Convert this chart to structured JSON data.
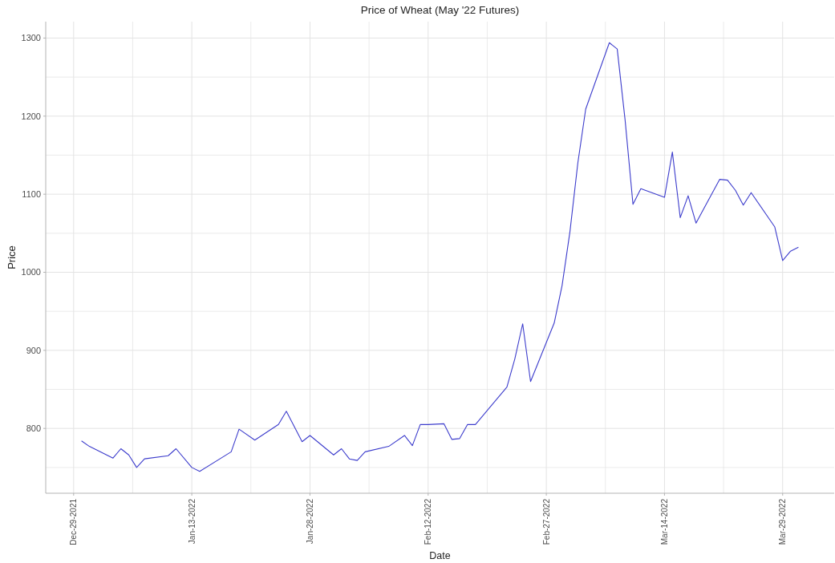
{
  "chart_data": {
    "type": "line",
    "title": "Price of Wheat (May '22 Futures)",
    "xlabel": "Date",
    "ylabel": "Price",
    "x": [
      "2021-12-30",
      "2021-12-31",
      "2022-01-03",
      "2022-01-04",
      "2022-01-05",
      "2022-01-06",
      "2022-01-07",
      "2022-01-10",
      "2022-01-11",
      "2022-01-13",
      "2022-01-14",
      "2022-01-18",
      "2022-01-19",
      "2022-01-21",
      "2022-01-24",
      "2022-01-25",
      "2022-01-27",
      "2022-01-28",
      "2022-01-31",
      "2022-02-01",
      "2022-02-02",
      "2022-02-03",
      "2022-02-04",
      "2022-02-07",
      "2022-02-09",
      "2022-02-10",
      "2022-02-11",
      "2022-02-12",
      "2022-02-14",
      "2022-02-15",
      "2022-02-16",
      "2022-02-17",
      "2022-02-18",
      "2022-02-22",
      "2022-02-23",
      "2022-02-24",
      "2022-02-25",
      "2022-02-28",
      "2022-03-01",
      "2022-03-02",
      "2022-03-03",
      "2022-03-04",
      "2022-03-07",
      "2022-03-08",
      "2022-03-09",
      "2022-03-10",
      "2022-03-11",
      "2022-03-14",
      "2022-03-15",
      "2022-03-16",
      "2022-03-17",
      "2022-03-18",
      "2022-03-21",
      "2022-03-22",
      "2022-03-23",
      "2022-03-24",
      "2022-03-25",
      "2022-03-28",
      "2022-03-29",
      "2022-03-30",
      "2022-03-31"
    ],
    "series": [
      {
        "color": "#3c3ccc",
        "values": [
          784,
          777,
          762,
          774,
          766,
          750,
          761,
          765,
          774,
          750,
          745,
          770,
          799,
          785,
          805,
          822,
          783,
          791,
          766,
          774,
          761,
          759,
          770,
          777,
          791,
          778,
          805,
          805,
          806,
          786,
          787,
          805,
          805,
          853,
          889,
          934,
          860,
          935,
          983,
          1052,
          1140,
          1209,
          1294,
          1286,
          1195,
          1087,
          1107,
          1096,
          1154,
          1070,
          1098,
          1063,
          1119,
          1118,
          1105,
          1086,
          1102,
          1058,
          1015,
          1027,
          1032
        ]
      }
    ],
    "xlim": [
      "2021-12-25T11:00",
      "2022-04-04T13:00"
    ],
    "xticks": [
      {
        "value": "2022-01-05T12:00",
        "label": null
      },
      {
        "value": "2022-01-20T12:00",
        "label": null
      },
      {
        "value": "2022-02-04T12:00",
        "label": null
      },
      {
        "value": "2022-02-19T12:00",
        "label": null
      },
      {
        "value": "2022-03-06T12:00",
        "label": null
      },
      {
        "value": "2022-03-21T12:00",
        "label": null
      },
      {
        "value": "2021-12-29",
        "label": "Dec-29-2021"
      },
      {
        "value": "2022-01-13",
        "label": "Jan-13-2022"
      },
      {
        "value": "2022-01-28",
        "label": "Jan-28-2022"
      },
      {
        "value": "2022-02-12",
        "label": "Feb-12-2022"
      },
      {
        "value": "2022-02-27",
        "label": "Feb-27-2022"
      },
      {
        "value": "2022-03-14",
        "label": "Mar-14-2022"
      },
      {
        "value": "2022-03-29",
        "label": "Mar-29-2022"
      }
    ],
    "ylim": [
      717,
      1321
    ],
    "yticks": [
      {
        "value": 750,
        "label": null
      },
      {
        "value": 850,
        "label": null
      },
      {
        "value": 950,
        "label": null
      },
      {
        "value": 1050,
        "label": null
      },
      {
        "value": 1150,
        "label": null
      },
      {
        "value": 1250,
        "label": null
      },
      800,
      900,
      1000,
      1100,
      1200,
      1300
    ],
    "grid": true
  }
}
